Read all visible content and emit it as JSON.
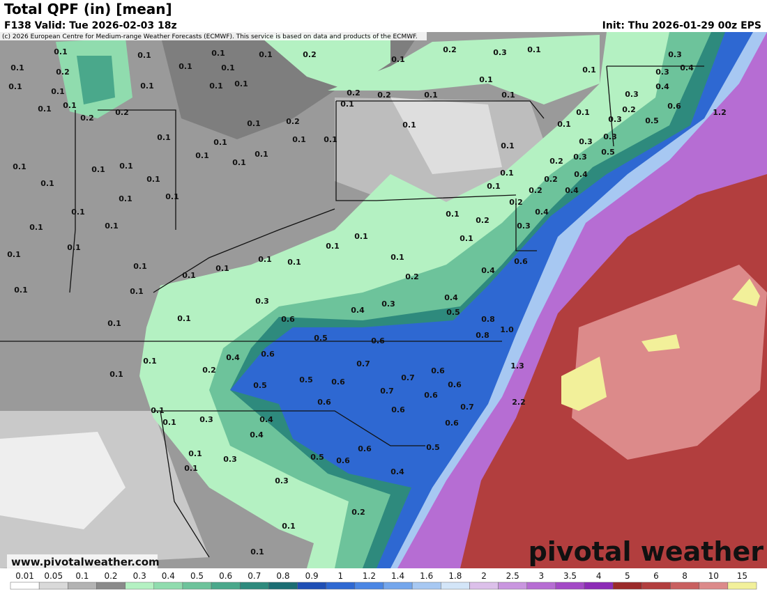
{
  "header": {
    "title": "Total QPF (in) [mean]",
    "valid": "F138 Valid: Tue 2026-02-03 18z",
    "init": "Init: Thu 2026-01-29 00z EPS",
    "copyright": "(c) 2026 European Centre for Medium-range Weather Forecasts (ECMWF). This service is based on data and products of the ECMWF."
  },
  "footer": {
    "website": "www.pivotalweather.com",
    "logo": "pivotal weather"
  },
  "map_labels": [
    "0.1",
    "0.2",
    "0.1",
    "0.1",
    "0.1",
    "0.1",
    "0.1",
    "0.2",
    "0.1",
    "0.1",
    "0.1",
    "0.1",
    "0.1",
    "0.1",
    "0.2",
    "0.1",
    "0.1",
    "0.2",
    "0.1",
    "0.1",
    "0.1",
    "0.1",
    "0.1",
    "0.1",
    "0.1",
    "0.1",
    "0.1",
    "0.1",
    "0.1",
    "0.1",
    "0.1",
    "0.1",
    "0.1",
    "0.1",
    "0.1",
    "0.1",
    "0.1",
    "0.1",
    "0.1",
    "0.1",
    "0.2",
    "0.3",
    "0.4",
    "0.6",
    "0.5",
    "0.6",
    "0.4",
    "0.5",
    "0.3",
    "0.1",
    "0.1",
    "0.1",
    "0.1",
    "0.4",
    "0.6",
    "0.2",
    "0.5",
    "0.5",
    "0.6",
    "0.7",
    "0.7",
    "0.6",
    "0.7",
    "0.6",
    "0.6",
    "0.6",
    "0.6",
    "0.7",
    "0.6",
    "0.4",
    "0.4",
    "0.3",
    "0.1",
    "0.1",
    "0.3",
    "0.6",
    "0.5",
    "0.6",
    "0.5",
    "0.4",
    "0.3",
    "0.1",
    "0.1",
    "0.2",
    "0.1",
    "0.1",
    "0.8",
    "0.8",
    "1.0",
    "1.3",
    "2.2",
    "0.4",
    "0.6",
    "0.1",
    "0.2",
    "0.2",
    "0.3",
    "0.4",
    "0.2",
    "0.2",
    "0.4",
    "0.4",
    "0.2",
    "0.3",
    "0.1",
    "0.1",
    "0.1",
    "0.1",
    "0.1",
    "0.1",
    "0.2",
    "0.2",
    "0.1",
    "0.1",
    "0.1",
    "0.2",
    "0.3",
    "0.1",
    "0.1",
    "0.1",
    "0.3",
    "0.4",
    "0.3",
    "0.4",
    "0.3",
    "0.2",
    "0.1",
    "0.1",
    "0.3",
    "0.5",
    "0.6",
    "0.5",
    "0.3",
    "0.3",
    "1.2",
    "0.1",
    "0.2",
    "0.1",
    "0.1",
    "0.1",
    "0.1",
    "0.1",
    "0.1",
    "0.1"
  ],
  "colorbar": {
    "ticks": [
      0.01,
      0.05,
      0.1,
      0.2,
      0.3,
      0.4,
      0.5,
      0.6,
      0.7,
      0.8,
      0.9,
      1,
      1.2,
      1.4,
      1.6,
      1.8,
      2,
      2.5,
      3,
      3.5,
      4,
      5,
      6,
      8,
      10,
      15
    ],
    "colors": [
      "#ffffff",
      "#d9d9d9",
      "#b3b3b3",
      "#8a8a8a",
      "#b4f1c2",
      "#90dcae",
      "#6dc39b",
      "#4aa88b",
      "#2e8a7d",
      "#1b6d73",
      "#1f4fb5",
      "#2e68d2",
      "#4a86e4",
      "#74a6ec",
      "#a7c8f2",
      "#d3e5f8",
      "#dcc0ea",
      "#c996df",
      "#b66dd3",
      "#a349c6",
      "#8c2bb6",
      "#9b2a2a",
      "#b23e3e",
      "#c96060",
      "#dc8a8a",
      "#f2f09a"
    ]
  }
}
